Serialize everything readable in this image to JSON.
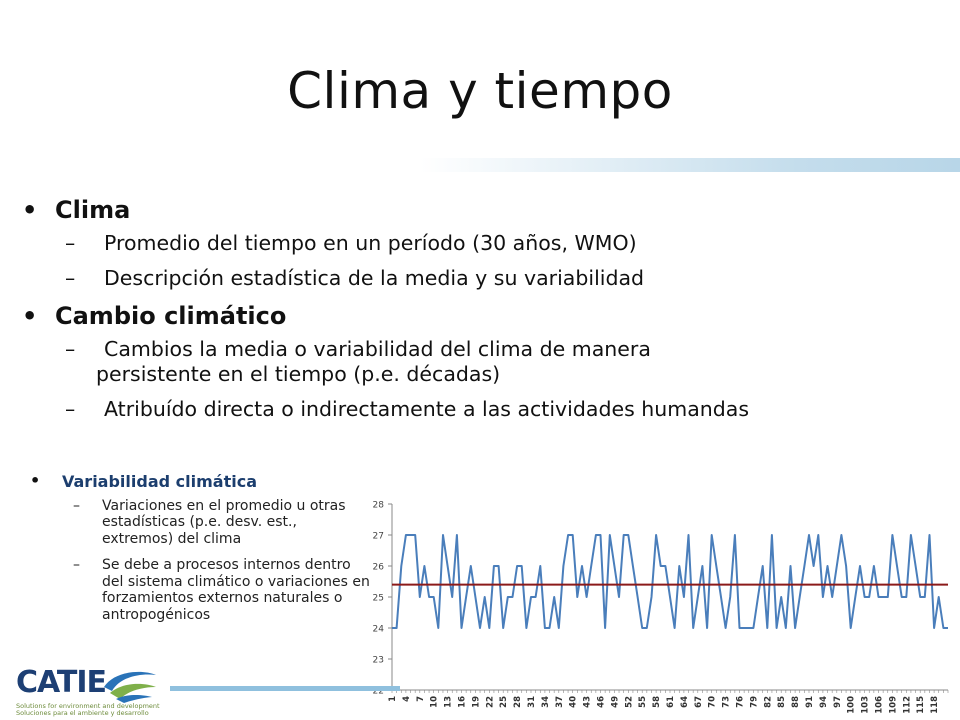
{
  "title": "Clima y tiempo",
  "bullets": [
    {
      "label": "Clima",
      "subs": [
        {
          "text": "Promedio del tiempo en un período (30 años, WMO)"
        },
        {
          "text": "Descripción estadística de la media y su variabilidad"
        }
      ]
    },
    {
      "label": "Cambio climático",
      "subs": [
        {
          "text": "Cambios la media o variabilidad del clima de manera",
          "cont": "persistente en el tiempo (p.e. décadas)"
        },
        {
          "text": "Atribuído directa o indirectamente a las actividades humandas"
        }
      ]
    }
  ],
  "small": {
    "label": "Variabilidad climática",
    "subs": [
      {
        "text": "Variaciones en el promedio u otras estadísticas (p.e. desv. est., extremos) del clima"
      },
      {
        "text": "Se debe a procesos internos dentro del sistema climático o variaciones en forzamientos externos naturales o antropogénicos"
      }
    ]
  },
  "logo": {
    "word": "CATIE",
    "tag1": "Solutions for environment and development",
    "tag2": "Soluciones para el ambiente y desarrollo"
  },
  "chart_data": {
    "type": "line",
    "ylim": [
      22,
      28
    ],
    "yticks": [
      22,
      23,
      24,
      25,
      26,
      27,
      28
    ],
    "xticklabels": [
      "1",
      "4",
      "7",
      "10",
      "13",
      "16",
      "19",
      "22",
      "25",
      "28",
      "31",
      "34",
      "37",
      "40",
      "43",
      "46",
      "49",
      "52",
      "55",
      "58",
      "61",
      "64",
      "67",
      "70",
      "73",
      "76",
      "79",
      "82",
      "85",
      "88",
      "91",
      "94",
      "97",
      "100",
      "103",
      "106",
      "109",
      "112",
      "115",
      "118"
    ],
    "grid": false,
    "series": [
      {
        "color": "#4a7ebb",
        "values": [
          24,
          24,
          26,
          27,
          27,
          27,
          25,
          26,
          25,
          25,
          24,
          27,
          26,
          25,
          27,
          24,
          25,
          26,
          25,
          24,
          25,
          24,
          26,
          26,
          24,
          25,
          25,
          26,
          26,
          24,
          25,
          25,
          26,
          24,
          24,
          25,
          24,
          26,
          27,
          27,
          25,
          26,
          25,
          26,
          27,
          27,
          24,
          27,
          26,
          25,
          27,
          27,
          26,
          25,
          24,
          24,
          25,
          27,
          26,
          26,
          25,
          24,
          26,
          25,
          27,
          24,
          25,
          26,
          24,
          27,
          26,
          25,
          24,
          25,
          27,
          24,
          24,
          24,
          24,
          25,
          26,
          24,
          27,
          24,
          25,
          24,
          26,
          24,
          25,
          26,
          27,
          26,
          27,
          25,
          26,
          25,
          26,
          27,
          26,
          24,
          25,
          26,
          25,
          25,
          26,
          25,
          25,
          25,
          27,
          26,
          25,
          25,
          27,
          26,
          25,
          25,
          27,
          24,
          25,
          24,
          24
        ],
        "name": ""
      },
      {
        "color": "#8b1a1a",
        "values": [
          25.4,
          25.4
        ],
        "name": ""
      }
    ]
  }
}
